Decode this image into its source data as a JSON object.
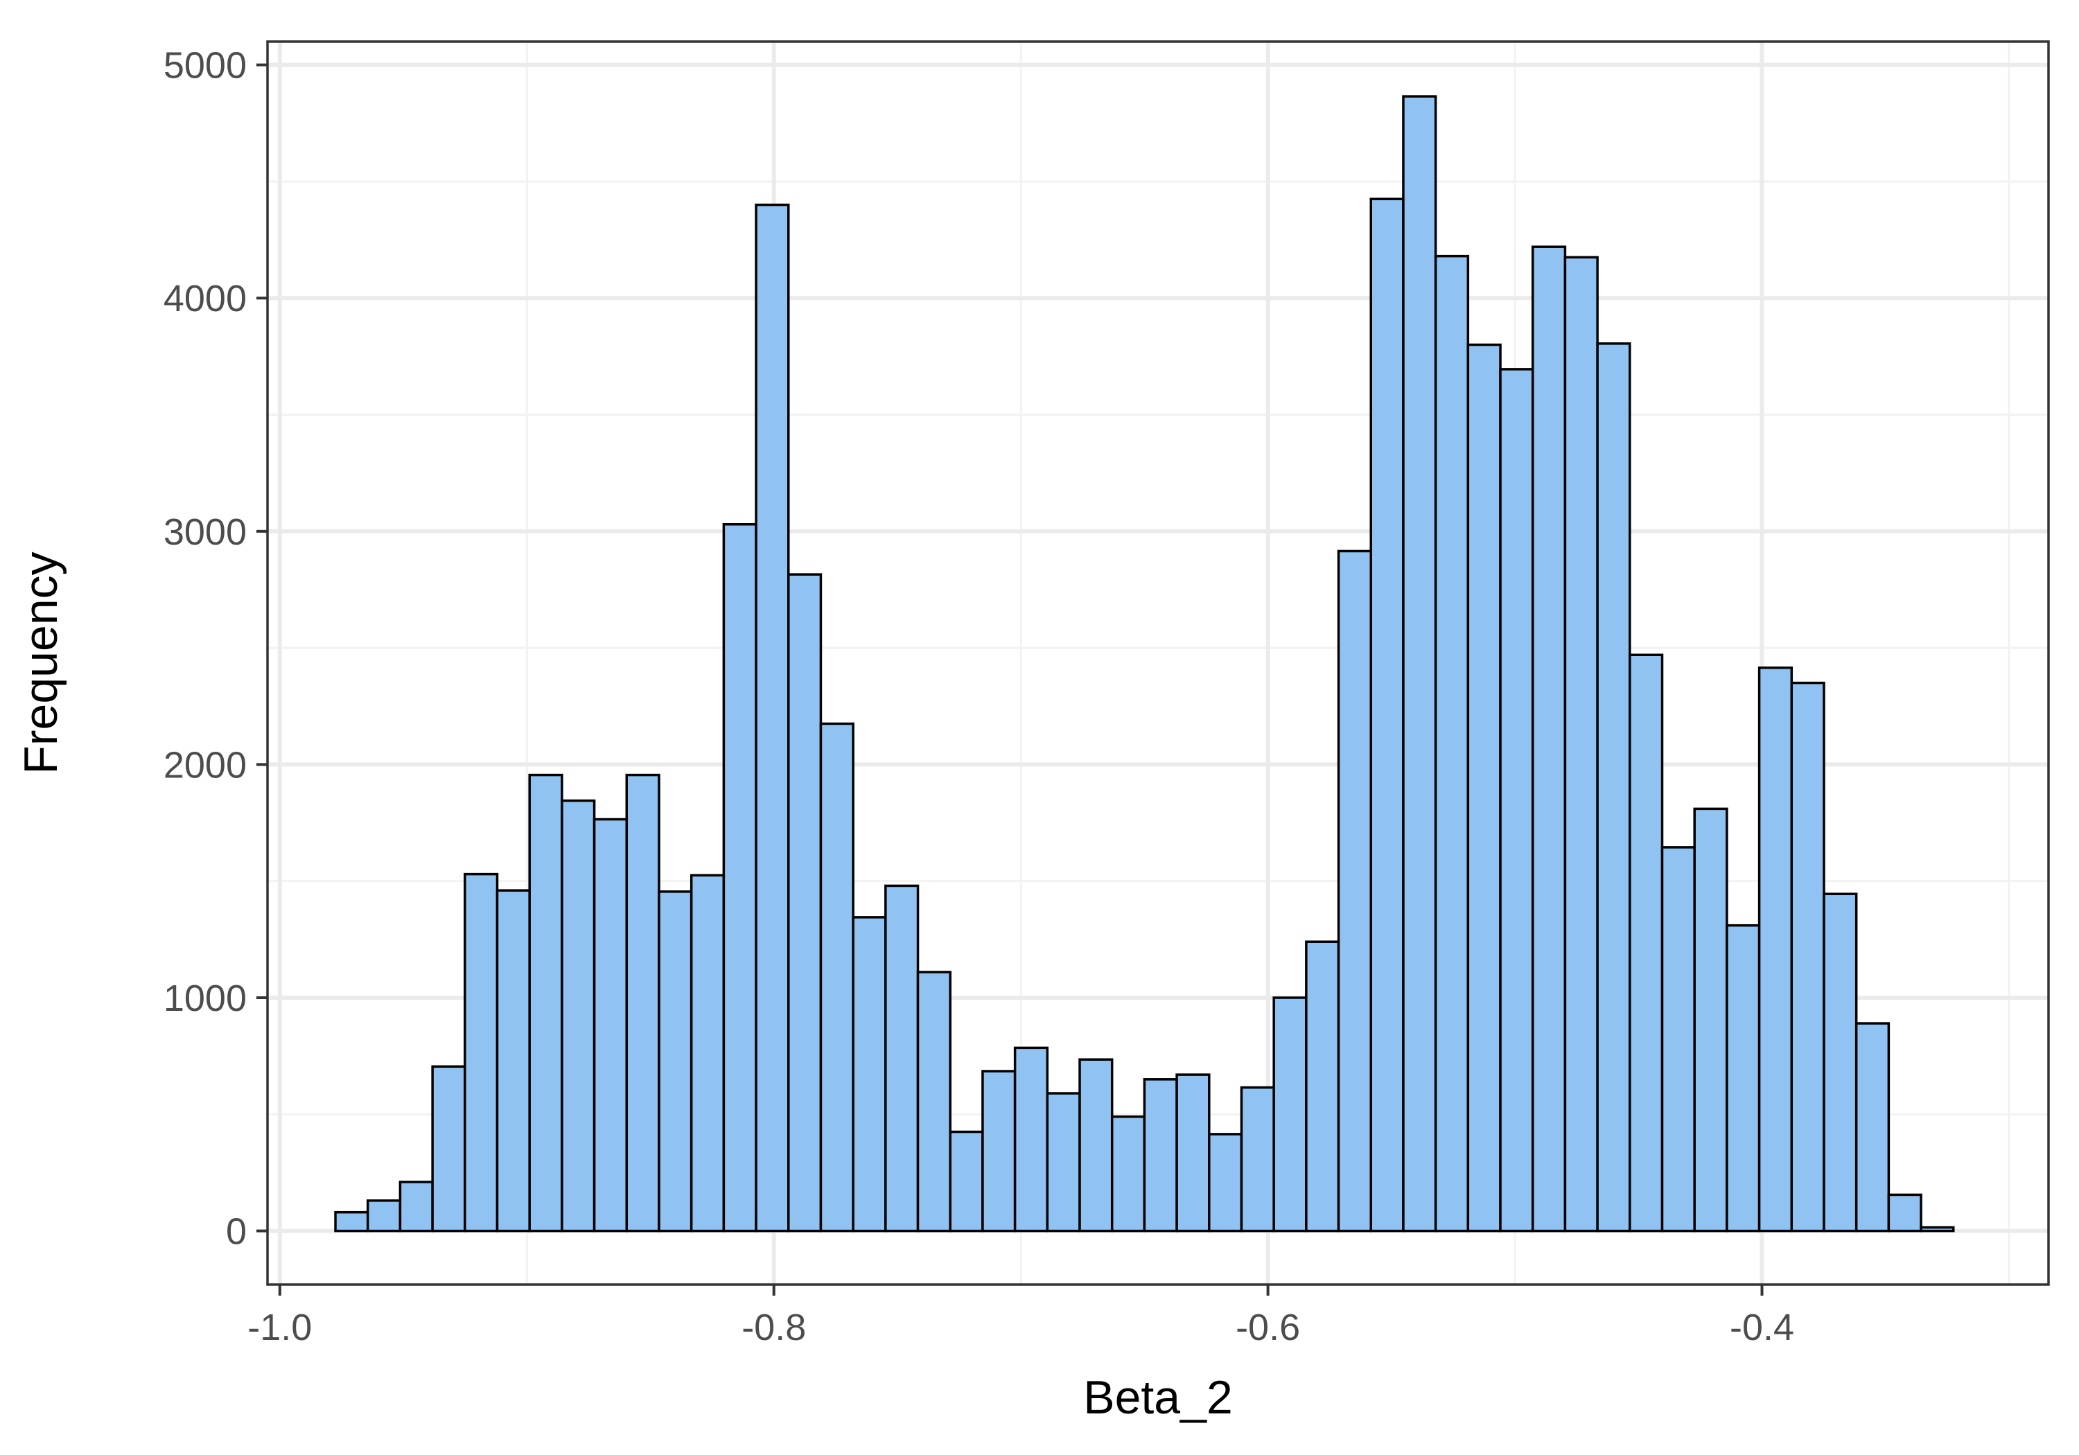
{
  "colors": {
    "bar_fill": "#90C3F2",
    "bar_stroke": "#000000",
    "panel_border": "#333333",
    "grid_major": "#EBEBEB",
    "grid_minor": "#F2F2F2",
    "tick_text": "#4D4D4D",
    "axis_title": "#000000",
    "background": "#FFFFFF"
  },
  "chart_data": {
    "type": "bar",
    "subtype": "histogram",
    "title": "",
    "xlabel": "Beta_2",
    "ylabel": "Frequency",
    "xlim": [
      -1.005,
      -0.284
    ],
    "ylim": [
      -230,
      5100
    ],
    "x_ticks": [
      -1.0,
      -0.8,
      -0.6,
      -0.4
    ],
    "x_tick_labels": [
      "-1.0",
      "-0.8",
      "-0.6",
      "-0.4"
    ],
    "y_ticks": [
      0,
      1000,
      2000,
      3000,
      4000,
      5000
    ],
    "y_tick_labels": [
      "0",
      "1000",
      "2000",
      "3000",
      "4000",
      "5000"
    ],
    "grid": true,
    "legend": "none",
    "bin_start": -0.9775,
    "bin_width": 0.0131,
    "counts": [
      80,
      130,
      210,
      705,
      1530,
      1460,
      1955,
      1845,
      1765,
      1955,
      1455,
      1525,
      3030,
      4400,
      2815,
      2175,
      1345,
      1480,
      1110,
      425,
      685,
      785,
      590,
      735,
      490,
      650,
      670,
      415,
      615,
      1000,
      1240,
      2915,
      4425,
      4865,
      4180,
      3800,
      3695,
      4220,
      4175,
      3805,
      2470,
      1645,
      1810,
      1310,
      2415,
      2350,
      1445,
      890,
      155,
      15
    ]
  }
}
